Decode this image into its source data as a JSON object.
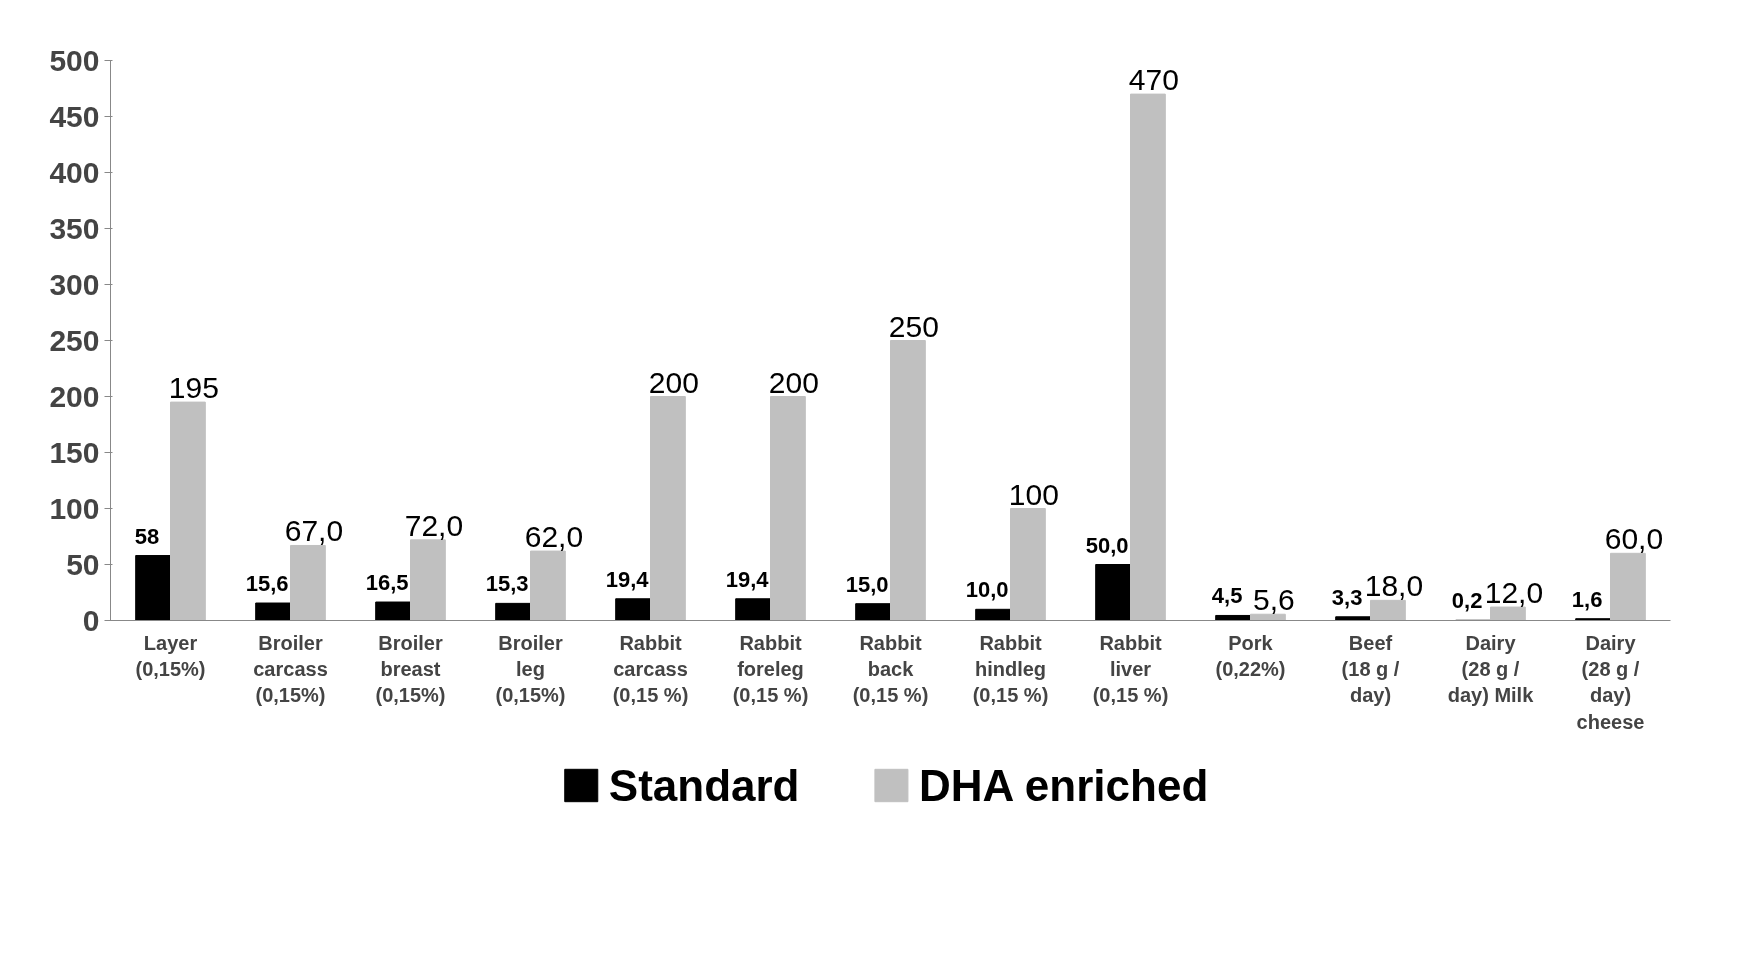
{
  "chart_data": {
    "type": "bar",
    "categories": [
      "Layer (0,15%)",
      "Broiler carcass (0,15%)",
      "Broiler breast (0,15%)",
      "Broiler leg (0,15%)",
      "Rabbit carcass (0,15 %)",
      "Rabbit foreleg (0,15 %)",
      "Rabbit back (0,15 %)",
      "Rabbit hindleg (0,15 %)",
      "Rabbit liver (0,15 %)",
      "Pork (0,22%)",
      "Beef (18 g / day)",
      "Dairy (28 g / day) Milk",
      "Dairy (28 g / day) cheese"
    ],
    "series": [
      {
        "name": "Standard",
        "color": "#000000",
        "values": [
          58,
          15.6,
          16.5,
          15.3,
          19.4,
          19.4,
          15.0,
          10.0,
          50.0,
          4.5,
          3.3,
          0.2,
          1.6
        ],
        "value_labels": [
          "58",
          "15,6",
          "16,5",
          "15,3",
          "19,4",
          "19,4",
          "15,0",
          "10,0",
          "50,0",
          "4,5",
          "3,3",
          "0,2",
          "1,6"
        ]
      },
      {
        "name": "DHA enriched",
        "color": "#c0c0c0",
        "values": [
          195,
          67.0,
          72.0,
          62.0,
          200,
          200,
          250,
          100,
          470,
          5.6,
          18.0,
          12.0,
          60.0
        ],
        "value_labels": [
          "195",
          "67,0",
          "72,0",
          "62,0",
          "200",
          "200",
          "250",
          "100",
          "470",
          "5,6",
          "18,0",
          "12,0",
          "60,0"
        ]
      }
    ],
    "ylim": [
      0,
      500
    ],
    "yticks": [
      0,
      50,
      100,
      150,
      200,
      250,
      300,
      350,
      400,
      450,
      500
    ],
    "grid": false,
    "legend": "bottom"
  }
}
